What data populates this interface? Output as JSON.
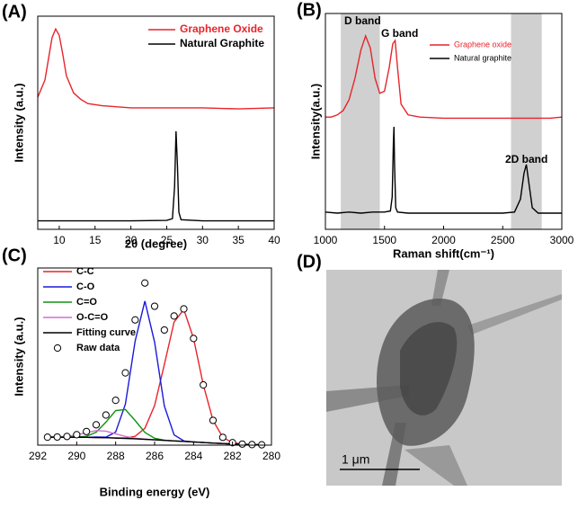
{
  "chart_data": [
    {
      "type": "line",
      "title": "(A)",
      "x_label": "2θ (degree)",
      "y_label": "Intensity (a.u.)",
      "xlim": [
        7,
        40
      ],
      "xticks": [
        10,
        15,
        20,
        25,
        30,
        35,
        40
      ],
      "ylim": [
        0,
        100
      ],
      "legend": "upper right",
      "series": [
        {
          "name": "Graphene Oxide",
          "color": "#e8242a",
          "x": [
            7,
            8,
            8.5,
            9,
            9.5,
            10,
            10.5,
            11,
            12,
            13,
            14,
            16,
            20,
            25,
            30,
            35,
            40
          ],
          "values": [
            62,
            70,
            80,
            90,
            94,
            91,
            82,
            72,
            64,
            61,
            59,
            58,
            57,
            57,
            57,
            56.5,
            57
          ]
        },
        {
          "name": "Natural Graphite",
          "color": "#000000",
          "x": [
            7,
            20,
            25,
            25.8,
            26.1,
            26.3,
            26.5,
            26.7,
            27,
            30,
            40
          ],
          "values": [
            4,
            4,
            4.2,
            5,
            20,
            46,
            30,
            8,
            4.5,
            4,
            4
          ]
        }
      ]
    },
    {
      "type": "line",
      "title": "(B)",
      "x_label": "Raman shift(cm⁻¹)",
      "y_label": "Intensity(a.u.)",
      "xlim": [
        1000,
        3000
      ],
      "xticks": [
        1000,
        1500,
        2000,
        2500,
        3000
      ],
      "ylim": [
        0,
        100
      ],
      "legend": "upper right",
      "shaded_regions": [
        [
          1130,
          1460
        ],
        [
          2570,
          2830
        ]
      ],
      "annotations": [
        "D band",
        "G band",
        "2D band"
      ],
      "series": [
        {
          "name": "Graphene oxide",
          "color": "#e8242a",
          "x": [
            1000,
            1050,
            1100,
            1150,
            1200,
            1250,
            1300,
            1340,
            1380,
            1420,
            1460,
            1500,
            1540,
            1570,
            1590,
            1610,
            1640,
            1700,
            1800,
            2000,
            2200,
            2400,
            2600,
            2650,
            2700,
            2750,
            2800,
            2900,
            3000
          ],
          "values": [
            52,
            52,
            53,
            55,
            60,
            70,
            83,
            89.6,
            84,
            70,
            63,
            64,
            75,
            86,
            87.5,
            75,
            58,
            53,
            52,
            51.5,
            51.5,
            51.5,
            51.5,
            51.5,
            51.5,
            51.5,
            51.5,
            51.5,
            52
          ]
        },
        {
          "name": "Natural graphite",
          "color": "#000000",
          "x": [
            1000,
            1100,
            1200,
            1300,
            1400,
            1500,
            1550,
            1565,
            1575,
            1580,
            1585,
            1595,
            1610,
            1700,
            2000,
            2300,
            2500,
            2600,
            2650,
            2680,
            2700,
            2720,
            2750,
            2800,
            2900,
            3000
          ],
          "values": [
            8,
            7.5,
            8,
            7.5,
            8,
            8,
            8.5,
            15,
            40,
            47.5,
            30,
            10,
            8,
            7.5,
            7.5,
            7.5,
            7.5,
            8,
            14,
            26,
            30,
            22,
            10,
            7.5,
            7.5,
            7.5
          ]
        }
      ]
    },
    {
      "type": "line",
      "title": "(C)",
      "x_label": "Binding energy (eV)",
      "y_label": "Intensity (a.u.)",
      "xlim": [
        292,
        280
      ],
      "xticks": [
        292,
        290,
        288,
        286,
        284,
        282,
        280
      ],
      "ylim": [
        0,
        100
      ],
      "legend": "upper left",
      "x": [
        291.5,
        291,
        290.5,
        290,
        289.5,
        289,
        288.5,
        288,
        287.5,
        287,
        286.5,
        286,
        285.5,
        285,
        284.5,
        284,
        283.5,
        283,
        282.5,
        282,
        281.5,
        281,
        280.5
      ],
      "series": [
        {
          "name": "C-C",
          "color": "#e8242a",
          "values": [
            4.5,
            4.5,
            4.5,
            4.5,
            4.4,
            4.3,
            4.2,
            4.0,
            4.0,
            5.0,
            9.5,
            22.4,
            45.5,
            69.5,
            76.6,
            60.2,
            34.0,
            14.0,
            4.4,
            1.4,
            0.6,
            0.3,
            0.2
          ]
        },
        {
          "name": "C-O",
          "color": "#1a1ad8",
          "values": [
            4.5,
            4.5,
            4.5,
            4.5,
            4.4,
            4.6,
            4.5,
            7.4,
            23.2,
            58.7,
            81.3,
            58.1,
            22.1,
            5.8,
            2.4,
            1.8,
            1.5,
            1.2,
            0.9,
            0.7,
            0.5,
            0.3,
            0.2
          ]
        },
        {
          "name": "C=O",
          "color": "#129212",
          "values": [
            4.5,
            4.5,
            4.5,
            4.6,
            5.0,
            7.3,
            13.0,
            19.5,
            20.1,
            13.9,
            7.2,
            3.9,
            2.8,
            2.4,
            2.1,
            1.8,
            1.5,
            1.2,
            0.9,
            0.7,
            0.5,
            0.3,
            0.2
          ]
        },
        {
          "name": "O-C=O",
          "color": "#d070d0",
          "values": [
            4.5,
            4.6,
            4.9,
            5.8,
            7.1,
            8.2,
            7.9,
            6.4,
            4.9,
            3.9,
            3.4,
            3.0,
            2.7,
            2.4,
            2.1,
            1.8,
            1.5,
            1.2,
            0.9,
            0.7,
            0.5,
            0.3,
            0.2
          ]
        },
        {
          "name": "Fitting curve",
          "color": "#000000",
          "values": [
            4.5,
            4.5,
            4.5,
            4.5,
            4.4,
            4.3,
            4.2,
            4.0,
            3.8,
            3.6,
            3.3,
            3.0,
            2.7,
            2.4,
            2.1,
            1.8,
            1.5,
            1.2,
            0.9,
            0.7,
            0.5,
            0.3,
            0.2
          ]
        },
        {
          "name": "Raw data",
          "color": "#000000",
          "marker": "circle",
          "values": [
            4.5,
            4.6,
            4.9,
            5.9,
            7.7,
            11.5,
            17.0,
            25.3,
            40.8,
            70.7,
            91.5,
            78.4,
            65.0,
            72.9,
            76.9,
            60.2,
            34.0,
            14.0,
            4.4,
            1.4,
            0.6,
            0.3,
            0.2
          ]
        }
      ]
    },
    {
      "type": "image",
      "title": "(D)",
      "scale_bar_label": "1 μm"
    }
  ]
}
